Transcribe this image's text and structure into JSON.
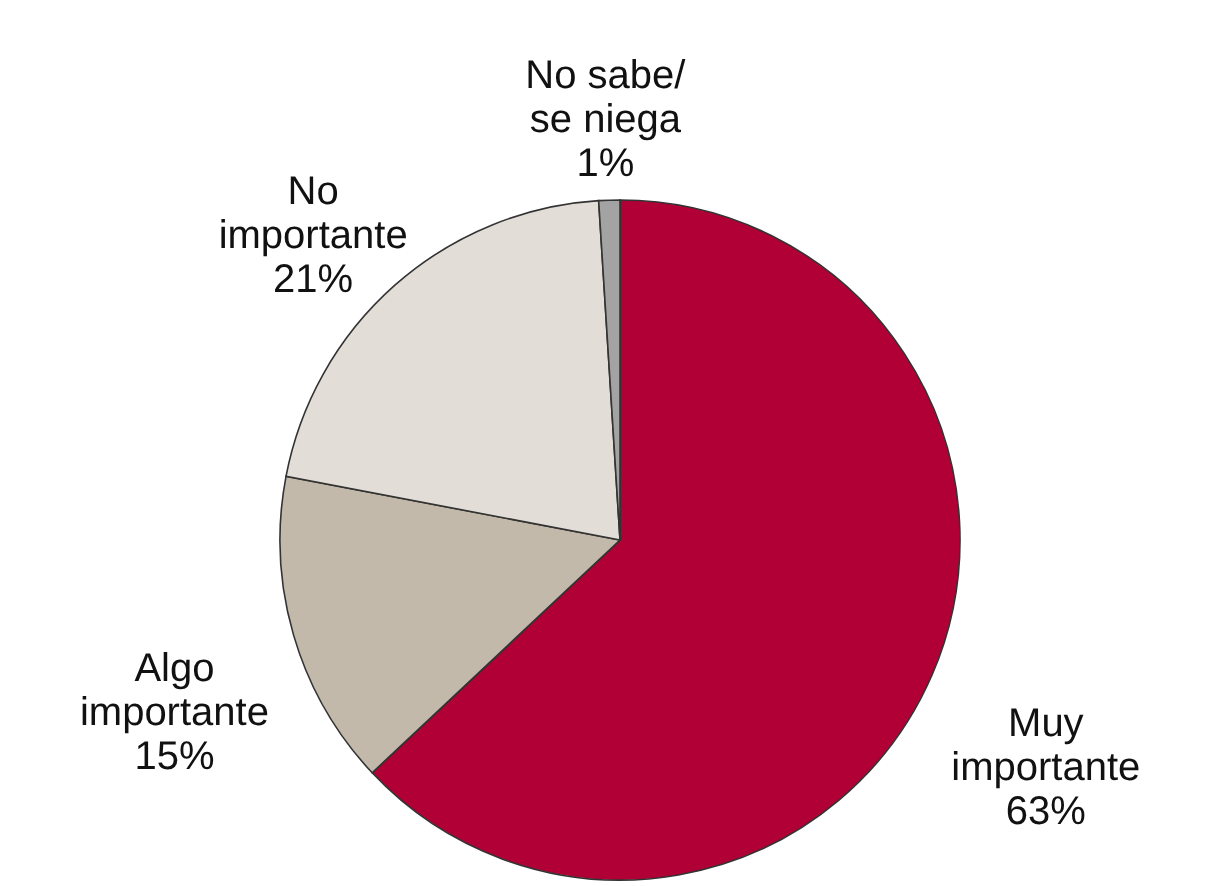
{
  "chart_data": {
    "type": "pie",
    "categories": [
      "Muy\nimportante",
      "Algo\nimportante",
      "No\nimportante",
      "No sabe/\nse niega"
    ],
    "values": [
      63,
      15,
      21,
      1
    ],
    "colors": [
      "#b00035",
      "#c3b9aa",
      "#e2ddd6",
      "#a3a3a3"
    ],
    "value_labels": [
      "63%",
      "15%",
      "21%",
      "1%"
    ]
  }
}
